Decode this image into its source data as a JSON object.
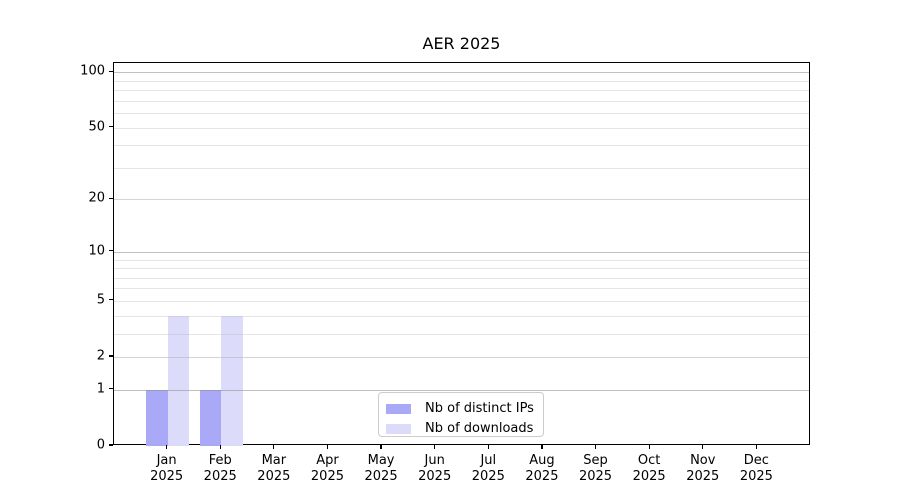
{
  "chart_data": {
    "type": "bar",
    "title": "AER 2025",
    "categories": [
      "Jan",
      "Feb",
      "Mar",
      "Apr",
      "May",
      "Jun",
      "Jul",
      "Aug",
      "Sep",
      "Oct",
      "Nov",
      "Dec"
    ],
    "category_year": "2025",
    "series": [
      {
        "name": "Nb of distinct IPs",
        "color": "#a9a9f8",
        "values": [
          1,
          1,
          0,
          0,
          0,
          0,
          0,
          0,
          0,
          0,
          0,
          0
        ]
      },
      {
        "name": "Nb of downloads",
        "color": "#dcdcfa",
        "values": [
          4,
          4,
          0,
          0,
          0,
          0,
          0,
          0,
          0,
          0,
          0,
          0
        ]
      }
    ],
    "y_axis": {
      "scale": "log10(1+value)",
      "tick_values": [
        0,
        1,
        2,
        5,
        10,
        20,
        50,
        100
      ],
      "tick_labels": [
        "0",
        "1",
        "2",
        "5",
        "10",
        "20",
        "50",
        "100"
      ],
      "grid_major_values": [
        1,
        10,
        100
      ],
      "grid_minor_values": [
        2,
        3,
        4,
        6,
        7,
        8,
        9,
        20,
        30,
        40,
        60,
        70,
        80,
        90
      ],
      "grid_minor_labeled_light": [
        2,
        5,
        20,
        50
      ],
      "ylim": [
        0,
        110
      ]
    },
    "grid": true,
    "legend_position": "lower center"
  },
  "legend": {
    "entries": [
      "Nb of distinct IPs",
      "Nb of downloads"
    ]
  },
  "colors": {
    "series_distinct_ips": "#a9a9f8",
    "series_downloads": "#dcdcfa",
    "grid_major": "#c6c6c6",
    "grid_minor": "#e6e6e6",
    "spine": "#000000",
    "legend_border": "#cccccc",
    "background": "#ffffff",
    "text": "#000000"
  }
}
